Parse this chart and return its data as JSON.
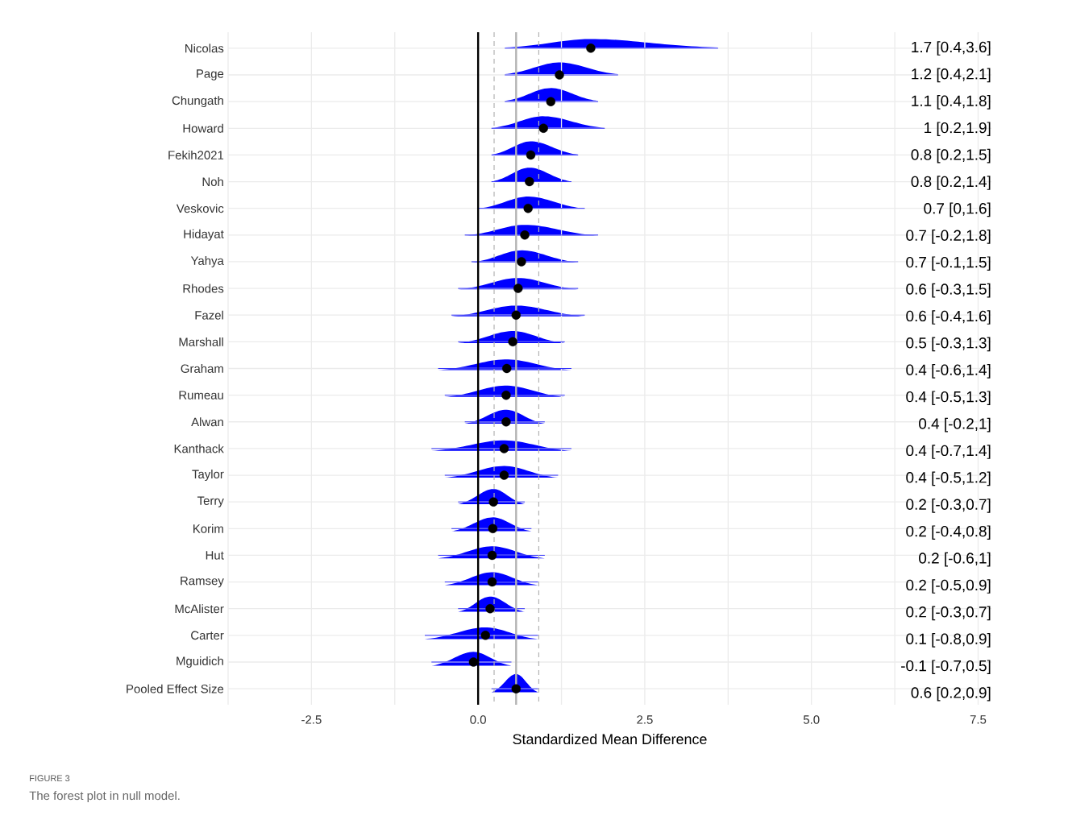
{
  "chart_data": {
    "type": "scatter",
    "orientation": "horizontal",
    "xlabel": "Standardized Mean Difference",
    "categories": [
      "Nicolas",
      "Page",
      "Chungath",
      "Howard",
      "Fekih2021",
      "Noh",
      "Veskovic",
      "Hidayat",
      "Yahya",
      "Rhodes",
      "Fazel",
      "Marshall",
      "Graham",
      "Rumeau",
      "Alwan",
      "Kanthack",
      "Taylor",
      "Terry",
      "Korim",
      "Hut",
      "Ramsey",
      "McAlister",
      "Carter",
      "Mguidich",
      "Pooled Effect Size"
    ],
    "series": [
      {
        "color": "#000000",
        "values": [
          1.69,
          1.22,
          1.09,
          0.98,
          0.79,
          0.77,
          0.75,
          0.7,
          0.65,
          0.6,
          0.57,
          0.52,
          0.43,
          0.42,
          0.42,
          0.39,
          0.39,
          0.23,
          0.22,
          0.21,
          0.21,
          0.18,
          0.11,
          -0.07,
          0.57
        ],
        "errors": [
          [
            0.4,
            3.6
          ],
          [
            0.4,
            2.1
          ],
          [
            0.4,
            1.8
          ],
          [
            0.2,
            1.9
          ],
          [
            0.2,
            1.5
          ],
          [
            0.2,
            1.4
          ],
          [
            0,
            1.6
          ],
          [
            -0.2,
            1.8
          ],
          [
            -0.1,
            1.5
          ],
          [
            -0.3,
            1.5
          ],
          [
            -0.4,
            1.6
          ],
          [
            -0.3,
            1.3
          ],
          [
            -0.6,
            1.4
          ],
          [
            -0.5,
            1.3
          ],
          [
            -0.2,
            1
          ],
          [
            -0.7,
            1.4
          ],
          [
            -0.5,
            1.2
          ],
          [
            -0.3,
            0.7
          ],
          [
            -0.4,
            0.8
          ],
          [
            -0.6,
            1
          ],
          [
            -0.5,
            0.9
          ],
          [
            -0.3,
            0.7
          ],
          [
            -0.8,
            0.9
          ],
          [
            -0.7,
            0.5
          ],
          [
            0.2,
            0.9
          ]
        ]
      }
    ],
    "xlim": [
      -3.75,
      7.7
    ],
    "xticks": [
      {
        "value": -3.75,
        "label": null
      },
      -2.5,
      {
        "value": -1.25,
        "label": null
      },
      {
        "value": 0,
        "label": "0.0"
      },
      {
        "value": 1.25,
        "label": null
      },
      2.5,
      {
        "value": 3.75,
        "label": null
      },
      {
        "value": 5,
        "label": "5.0"
      },
      {
        "value": 6.25,
        "label": null
      },
      7.5
    ],
    "grid": true,
    "marker": "circle",
    "ref_lines": [
      {
        "axis": "x",
        "value": 0,
        "color": "#000000",
        "line_style": "solid"
      },
      {
        "axis": "x",
        "value": 0.57,
        "color": "#b3b3b3",
        "line_style": "solid"
      },
      {
        "axis": "x",
        "value": 0.24,
        "color": "#b3b3b3",
        "line_style": "dashed"
      },
      {
        "axis": "x",
        "value": 0.91,
        "color": "#b3b3b3",
        "line_style": "dashed"
      }
    ],
    "annotations": [
      "1.7 [0.4,3.6]",
      "1.2 [0.4,2.1]",
      "1.1 [0.4,1.8]",
      "1 [0.2,1.9]",
      "0.8 [0.2,1.5]",
      "0.8 [0.2,1.4]",
      "0.7 [0,1.6]",
      "0.7 [-0.2,1.8]",
      "0.7 [-0.1,1.5]",
      "0.6 [-0.3,1.5]",
      "0.6 [-0.4,1.6]",
      "0.5 [-0.3,1.3]",
      "0.4 [-0.6,1.4]",
      "0.4 [-0.5,1.3]",
      "0.4 [-0.2,1]",
      "0.4 [-0.7,1.4]",
      "0.4 [-0.5,1.2]",
      "0.2 [-0.3,0.7]",
      "0.2 [-0.4,0.8]",
      "0.2 [-0.6,1]",
      "0.2 [-0.5,0.9]",
      "0.2 [-0.3,0.7]",
      "0.1 [-0.8,0.9]",
      "-0.1 [-0.7,0.5]",
      "0.6 [0.2,0.9]",
      "FIGURE 3",
      "The forest plot in null model."
    ]
  }
}
